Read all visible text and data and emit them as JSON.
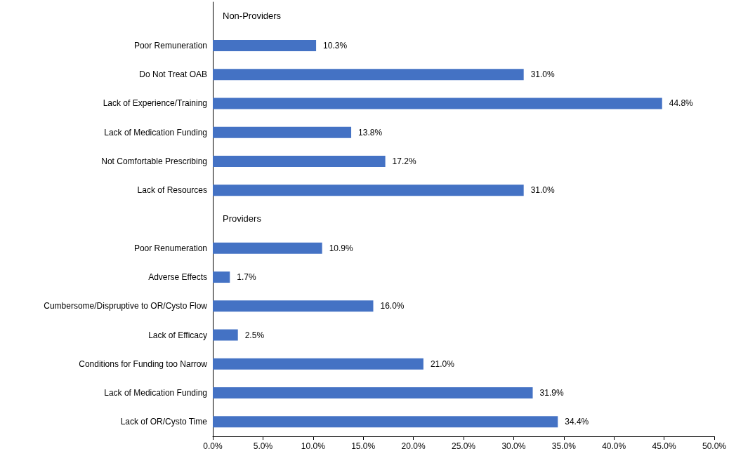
{
  "chart_data": {
    "type": "bar",
    "orientation": "horizontal",
    "color": "#4472c4",
    "categories": [
      "Non-Providers",
      "Poor Remuneration",
      "Do Not Treat OAB",
      "Lack of Experience/Training",
      "Lack of Medication Funding",
      "Not Comfortable Prescribing",
      "Lack of Resources",
      "Providers",
      "Poor Renumeration",
      "Adverse Effects",
      "Cumbersome/Dispruptive to OR/Cysto Flow",
      "Lack of Efficacy",
      "Conditions for Funding too Narrow",
      "Lack of Medication Funding",
      "Lack of OR/Cysto Time"
    ],
    "values": [
      null,
      10.3,
      31.0,
      44.8,
      13.8,
      17.2,
      31.0,
      null,
      10.9,
      1.7,
      16.0,
      2.5,
      21.0,
      31.9,
      34.4
    ],
    "value_labels": [
      null,
      "10.3%",
      "31.0%",
      "44.8%",
      "13.8%",
      "17.2%",
      "31.0%",
      null,
      "10.9%",
      "1.7%",
      "16.0%",
      "2.5%",
      "21.0%",
      "31.9%",
      "34.4%"
    ],
    "xlim": [
      0,
      50
    ],
    "xticks": [
      {
        "value": 0,
        "label": "0.0%"
      },
      {
        "value": 5,
        "label": "5.0%"
      },
      {
        "value": 10,
        "label": "10.0%"
      },
      {
        "value": 15,
        "label": "15.0%"
      },
      {
        "value": 20,
        "label": "20.0%"
      },
      {
        "value": 25,
        "label": "25.0%"
      },
      {
        "value": 30,
        "label": "30.0%"
      },
      {
        "value": 35,
        "label": "35.0%"
      },
      {
        "value": 40,
        "label": "40.0%"
      },
      {
        "value": 45,
        "label": "45.0%"
      },
      {
        "value": 50,
        "label": "50.0%"
      }
    ],
    "grid": false
  }
}
